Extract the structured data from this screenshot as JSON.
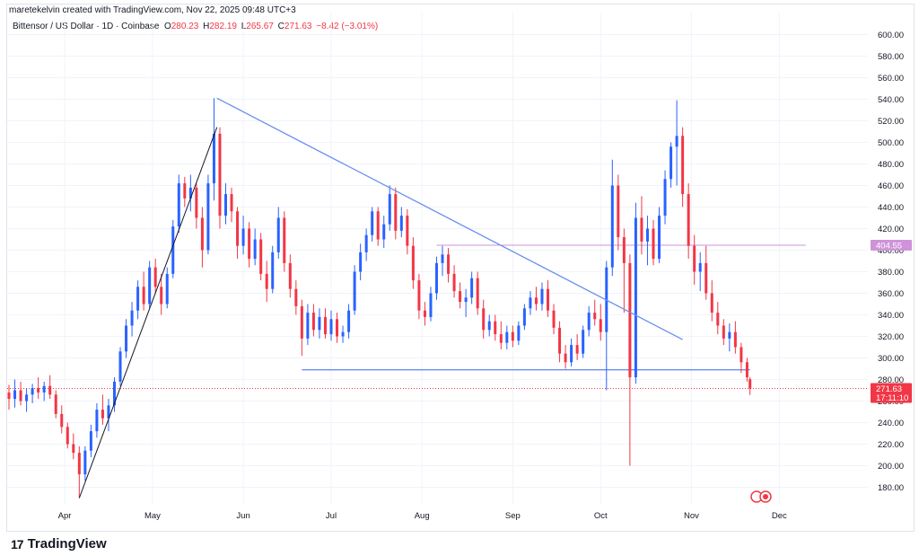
{
  "header": {
    "credit": "maretekelvin created with TradingView.com, Nov 22, 2025 09:48 UTC+3",
    "symbol": "Bittensor / US Dollar · 1D · Coinbase",
    "open_label": "O",
    "open": "280.23",
    "high_label": "H",
    "high": "282.19",
    "low_label": "L",
    "low": "265.67",
    "close_label": "C",
    "close": "271.63",
    "change": "−8.42 (−3.01%)"
  },
  "brand": {
    "name": "TradingView",
    "logo_text": "17"
  },
  "colors": {
    "up": "#2962ff",
    "down": "#f23645",
    "trendline": "#6b8ff0",
    "resistance": "#ce93d8",
    "last_price": "#f23645"
  },
  "chart_data": {
    "type": "candlestick",
    "title": "Bittensor / US Dollar · 1D · Coinbase",
    "y_ticks": [
      "180.00",
      "200.00",
      "220.00",
      "240.00",
      "260.00",
      "280.00",
      "300.00",
      "320.00",
      "340.00",
      "360.00",
      "380.00",
      "400.00",
      "420.00",
      "440.00",
      "460.00",
      "480.00",
      "500.00",
      "520.00",
      "540.00",
      "560.00",
      "580.00",
      "600.00"
    ],
    "ylim": [
      166,
      610
    ],
    "x_ticks": [
      "Apr",
      "May",
      "Jun",
      "Jul",
      "Aug",
      "Sep",
      "Oct",
      "Nov",
      "Dec"
    ],
    "x_range": [
      "2025-03-13",
      "2025-12-10"
    ],
    "grid": true,
    "price_labels": [
      {
        "name": "resistance",
        "value": "404.55",
        "color": "#ce93d8"
      },
      {
        "name": "last",
        "value": "271.63",
        "countdown": "17:11:10",
        "color": "#f23645"
      }
    ],
    "levels": [
      {
        "name": "resistance",
        "price": 404.55,
        "from": "2025-08-06",
        "to": "2025-12-10"
      },
      {
        "name": "support",
        "price": 289,
        "from": "2025-06-21",
        "to": "2025-11-21"
      }
    ],
    "trendlines": [
      {
        "name": "descending",
        "from": {
          "date": "2025-05-23",
          "price": 541
        },
        "to": {
          "date": "2025-10-29",
          "price": 317
        }
      },
      {
        "name": "ascending",
        "from": {
          "date": "2025-04-06",
          "price": 170
        },
        "to": {
          "date": "2025-05-23",
          "price": 514
        }
      }
    ],
    "candles": [
      {
        "d": "2025-03-13",
        "o": 268,
        "h": 275,
        "l": 252,
        "c": 262
      },
      {
        "d": "2025-03-15",
        "o": 262,
        "h": 280,
        "l": 254,
        "c": 270
      },
      {
        "d": "2025-03-17",
        "o": 270,
        "h": 278,
        "l": 256,
        "c": 260
      },
      {
        "d": "2025-03-19",
        "o": 260,
        "h": 272,
        "l": 250,
        "c": 266
      },
      {
        "d": "2025-03-21",
        "o": 266,
        "h": 276,
        "l": 258,
        "c": 272
      },
      {
        "d": "2025-03-23",
        "o": 272,
        "h": 282,
        "l": 262,
        "c": 268
      },
      {
        "d": "2025-03-25",
        "o": 268,
        "h": 278,
        "l": 260,
        "c": 274
      },
      {
        "d": "2025-03-27",
        "o": 274,
        "h": 284,
        "l": 262,
        "c": 266
      },
      {
        "d": "2025-03-29",
        "o": 266,
        "h": 270,
        "l": 244,
        "c": 248
      },
      {
        "d": "2025-03-31",
        "o": 248,
        "h": 256,
        "l": 230,
        "c": 236
      },
      {
        "d": "2025-04-02",
        "o": 236,
        "h": 240,
        "l": 216,
        "c": 220
      },
      {
        "d": "2025-04-04",
        "o": 220,
        "h": 230,
        "l": 206,
        "c": 212
      },
      {
        "d": "2025-04-06",
        "o": 212,
        "h": 218,
        "l": 170,
        "c": 192
      },
      {
        "d": "2025-04-08",
        "o": 192,
        "h": 218,
        "l": 186,
        "c": 214
      },
      {
        "d": "2025-04-10",
        "o": 214,
        "h": 238,
        "l": 208,
        "c": 232
      },
      {
        "d": "2025-04-12",
        "o": 232,
        "h": 258,
        "l": 226,
        "c": 252
      },
      {
        "d": "2025-04-14",
        "o": 252,
        "h": 266,
        "l": 238,
        "c": 244
      },
      {
        "d": "2025-04-16",
        "o": 244,
        "h": 262,
        "l": 232,
        "c": 256
      },
      {
        "d": "2025-04-18",
        "o": 256,
        "h": 282,
        "l": 250,
        "c": 278
      },
      {
        "d": "2025-04-20",
        "o": 278,
        "h": 310,
        "l": 274,
        "c": 306
      },
      {
        "d": "2025-04-22",
        "o": 306,
        "h": 336,
        "l": 300,
        "c": 330
      },
      {
        "d": "2025-04-24",
        "o": 330,
        "h": 352,
        "l": 320,
        "c": 344
      },
      {
        "d": "2025-04-26",
        "o": 344,
        "h": 372,
        "l": 336,
        "c": 366
      },
      {
        "d": "2025-04-28",
        "o": 366,
        "h": 380,
        "l": 344,
        "c": 350
      },
      {
        "d": "2025-04-30",
        "o": 350,
        "h": 390,
        "l": 346,
        "c": 384
      },
      {
        "d": "2025-05-02",
        "o": 384,
        "h": 392,
        "l": 360,
        "c": 366
      },
      {
        "d": "2025-05-04",
        "o": 366,
        "h": 378,
        "l": 340,
        "c": 350
      },
      {
        "d": "2025-05-06",
        "o": 350,
        "h": 384,
        "l": 346,
        "c": 378
      },
      {
        "d": "2025-05-08",
        "o": 378,
        "h": 428,
        "l": 374,
        "c": 422
      },
      {
        "d": "2025-05-10",
        "o": 422,
        "h": 470,
        "l": 416,
        "c": 462
      },
      {
        "d": "2025-05-12",
        "o": 462,
        "h": 468,
        "l": 440,
        "c": 448
      },
      {
        "d": "2025-05-14",
        "o": 448,
        "h": 470,
        "l": 436,
        "c": 458
      },
      {
        "d": "2025-05-16",
        "o": 458,
        "h": 462,
        "l": 420,
        "c": 430
      },
      {
        "d": "2025-05-18",
        "o": 430,
        "h": 440,
        "l": 384,
        "c": 400
      },
      {
        "d": "2025-05-20",
        "o": 400,
        "h": 470,
        "l": 396,
        "c": 462
      },
      {
        "d": "2025-05-22",
        "o": 462,
        "h": 541,
        "l": 446,
        "c": 508
      },
      {
        "d": "2025-05-24",
        "o": 508,
        "h": 514,
        "l": 420,
        "c": 432
      },
      {
        "d": "2025-05-26",
        "o": 432,
        "h": 462,
        "l": 424,
        "c": 452
      },
      {
        "d": "2025-05-28",
        "o": 452,
        "h": 458,
        "l": 426,
        "c": 436
      },
      {
        "d": "2025-05-30",
        "o": 436,
        "h": 440,
        "l": 392,
        "c": 404
      },
      {
        "d": "2025-06-01",
        "o": 404,
        "h": 432,
        "l": 396,
        "c": 420
      },
      {
        "d": "2025-06-03",
        "o": 420,
        "h": 426,
        "l": 384,
        "c": 392
      },
      {
        "d": "2025-06-05",
        "o": 392,
        "h": 420,
        "l": 386,
        "c": 410
      },
      {
        "d": "2025-06-07",
        "o": 410,
        "h": 416,
        "l": 372,
        "c": 378
      },
      {
        "d": "2025-06-09",
        "o": 378,
        "h": 390,
        "l": 352,
        "c": 364
      },
      {
        "d": "2025-06-11",
        "o": 364,
        "h": 404,
        "l": 360,
        "c": 398
      },
      {
        "d": "2025-06-13",
        "o": 398,
        "h": 440,
        "l": 392,
        "c": 430
      },
      {
        "d": "2025-06-15",
        "o": 430,
        "h": 436,
        "l": 380,
        "c": 388
      },
      {
        "d": "2025-06-17",
        "o": 388,
        "h": 396,
        "l": 356,
        "c": 364
      },
      {
        "d": "2025-06-19",
        "o": 364,
        "h": 372,
        "l": 340,
        "c": 348
      },
      {
        "d": "2025-06-21",
        "o": 348,
        "h": 354,
        "l": 302,
        "c": 318
      },
      {
        "d": "2025-06-23",
        "o": 318,
        "h": 350,
        "l": 312,
        "c": 342
      },
      {
        "d": "2025-06-25",
        "o": 342,
        "h": 350,
        "l": 320,
        "c": 326
      },
      {
        "d": "2025-06-27",
        "o": 326,
        "h": 346,
        "l": 318,
        "c": 338
      },
      {
        "d": "2025-06-29",
        "o": 338,
        "h": 346,
        "l": 318,
        "c": 322
      },
      {
        "d": "2025-07-01",
        "o": 322,
        "h": 344,
        "l": 316,
        "c": 336
      },
      {
        "d": "2025-07-03",
        "o": 336,
        "h": 342,
        "l": 314,
        "c": 320
      },
      {
        "d": "2025-07-05",
        "o": 320,
        "h": 330,
        "l": 314,
        "c": 324
      },
      {
        "d": "2025-07-07",
        "o": 324,
        "h": 350,
        "l": 318,
        "c": 344
      },
      {
        "d": "2025-07-09",
        "o": 344,
        "h": 386,
        "l": 340,
        "c": 380
      },
      {
        "d": "2025-07-11",
        "o": 380,
        "h": 406,
        "l": 372,
        "c": 398
      },
      {
        "d": "2025-07-13",
        "o": 398,
        "h": 420,
        "l": 390,
        "c": 414
      },
      {
        "d": "2025-07-15",
        "o": 414,
        "h": 440,
        "l": 408,
        "c": 436
      },
      {
        "d": "2025-07-17",
        "o": 436,
        "h": 440,
        "l": 404,
        "c": 410
      },
      {
        "d": "2025-07-19",
        "o": 410,
        "h": 432,
        "l": 402,
        "c": 424
      },
      {
        "d": "2025-07-21",
        "o": 424,
        "h": 460,
        "l": 418,
        "c": 452
      },
      {
        "d": "2025-07-23",
        "o": 452,
        "h": 458,
        "l": 410,
        "c": 418
      },
      {
        "d": "2025-07-25",
        "o": 418,
        "h": 440,
        "l": 412,
        "c": 432
      },
      {
        "d": "2025-07-27",
        "o": 432,
        "h": 438,
        "l": 396,
        "c": 404
      },
      {
        "d": "2025-07-29",
        "o": 404,
        "h": 412,
        "l": 364,
        "c": 372
      },
      {
        "d": "2025-07-31",
        "o": 372,
        "h": 378,
        "l": 336,
        "c": 344
      },
      {
        "d": "2025-08-02",
        "o": 344,
        "h": 352,
        "l": 330,
        "c": 338
      },
      {
        "d": "2025-08-04",
        "o": 338,
        "h": 366,
        "l": 334,
        "c": 360
      },
      {
        "d": "2025-08-06",
        "o": 360,
        "h": 394,
        "l": 354,
        "c": 388
      },
      {
        "d": "2025-08-08",
        "o": 388,
        "h": 404,
        "l": 376,
        "c": 396
      },
      {
        "d": "2025-08-10",
        "o": 396,
        "h": 402,
        "l": 370,
        "c": 378
      },
      {
        "d": "2025-08-12",
        "o": 378,
        "h": 386,
        "l": 356,
        "c": 362
      },
      {
        "d": "2025-08-14",
        "o": 362,
        "h": 370,
        "l": 346,
        "c": 352
      },
      {
        "d": "2025-08-16",
        "o": 352,
        "h": 364,
        "l": 338,
        "c": 356
      },
      {
        "d": "2025-08-18",
        "o": 356,
        "h": 380,
        "l": 350,
        "c": 374
      },
      {
        "d": "2025-08-20",
        "o": 374,
        "h": 380,
        "l": 340,
        "c": 346
      },
      {
        "d": "2025-08-22",
        "o": 346,
        "h": 354,
        "l": 318,
        "c": 326
      },
      {
        "d": "2025-08-24",
        "o": 326,
        "h": 340,
        "l": 320,
        "c": 334
      },
      {
        "d": "2025-08-26",
        "o": 334,
        "h": 340,
        "l": 316,
        "c": 322
      },
      {
        "d": "2025-08-28",
        "o": 322,
        "h": 334,
        "l": 308,
        "c": 314
      },
      {
        "d": "2025-08-30",
        "o": 314,
        "h": 330,
        "l": 308,
        "c": 324
      },
      {
        "d": "2025-09-01",
        "o": 324,
        "h": 330,
        "l": 310,
        "c": 316
      },
      {
        "d": "2025-09-03",
        "o": 316,
        "h": 334,
        "l": 312,
        "c": 330
      },
      {
        "d": "2025-09-05",
        "o": 330,
        "h": 350,
        "l": 326,
        "c": 346
      },
      {
        "d": "2025-09-07",
        "o": 346,
        "h": 362,
        "l": 340,
        "c": 356
      },
      {
        "d": "2025-09-09",
        "o": 356,
        "h": 366,
        "l": 344,
        "c": 350
      },
      {
        "d": "2025-09-11",
        "o": 350,
        "h": 370,
        "l": 344,
        "c": 364
      },
      {
        "d": "2025-09-13",
        "o": 364,
        "h": 372,
        "l": 338,
        "c": 344
      },
      {
        "d": "2025-09-15",
        "o": 344,
        "h": 350,
        "l": 322,
        "c": 328
      },
      {
        "d": "2025-09-17",
        "o": 328,
        "h": 334,
        "l": 296,
        "c": 304
      },
      {
        "d": "2025-09-19",
        "o": 304,
        "h": 312,
        "l": 290,
        "c": 296
      },
      {
        "d": "2025-09-21",
        "o": 296,
        "h": 318,
        "l": 292,
        "c": 312
      },
      {
        "d": "2025-09-23",
        "o": 312,
        "h": 322,
        "l": 298,
        "c": 304
      },
      {
        "d": "2025-09-25",
        "o": 304,
        "h": 330,
        "l": 300,
        "c": 326
      },
      {
        "d": "2025-09-27",
        "o": 326,
        "h": 348,
        "l": 320,
        "c": 342
      },
      {
        "d": "2025-09-29",
        "o": 342,
        "h": 354,
        "l": 330,
        "c": 336
      },
      {
        "d": "2025-10-01",
        "o": 336,
        "h": 350,
        "l": 316,
        "c": 324
      },
      {
        "d": "2025-10-03",
        "o": 324,
        "h": 390,
        "l": 270,
        "c": 384
      },
      {
        "d": "2025-10-05",
        "o": 384,
        "h": 484,
        "l": 376,
        "c": 460
      },
      {
        "d": "2025-10-07",
        "o": 460,
        "h": 470,
        "l": 400,
        "c": 412
      },
      {
        "d": "2025-10-09",
        "o": 412,
        "h": 420,
        "l": 342,
        "c": 388
      },
      {
        "d": "2025-10-11",
        "o": 388,
        "h": 396,
        "l": 200,
        "c": 282
      },
      {
        "d": "2025-10-13",
        "o": 282,
        "h": 444,
        "l": 276,
        "c": 430
      },
      {
        "d": "2025-10-15",
        "o": 430,
        "h": 450,
        "l": 396,
        "c": 408
      },
      {
        "d": "2025-10-17",
        "o": 408,
        "h": 432,
        "l": 386,
        "c": 420
      },
      {
        "d": "2025-10-19",
        "o": 420,
        "h": 428,
        "l": 386,
        "c": 392
      },
      {
        "d": "2025-10-21",
        "o": 392,
        "h": 440,
        "l": 388,
        "c": 432
      },
      {
        "d": "2025-10-23",
        "o": 432,
        "h": 474,
        "l": 424,
        "c": 466
      },
      {
        "d": "2025-10-25",
        "o": 466,
        "h": 500,
        "l": 458,
        "c": 496
      },
      {
        "d": "2025-10-27",
        "o": 496,
        "h": 539,
        "l": 460,
        "c": 506
      },
      {
        "d": "2025-10-29",
        "o": 506,
        "h": 514,
        "l": 440,
        "c": 452
      },
      {
        "d": "2025-10-31",
        "o": 452,
        "h": 462,
        "l": 392,
        "c": 404
      },
      {
        "d": "2025-11-02",
        "o": 404,
        "h": 414,
        "l": 368,
        "c": 380
      },
      {
        "d": "2025-11-04",
        "o": 380,
        "h": 398,
        "l": 362,
        "c": 388
      },
      {
        "d": "2025-11-06",
        "o": 388,
        "h": 404,
        "l": 354,
        "c": 360
      },
      {
        "d": "2025-11-08",
        "o": 360,
        "h": 372,
        "l": 334,
        "c": 342
      },
      {
        "d": "2025-11-10",
        "o": 342,
        "h": 352,
        "l": 322,
        "c": 330
      },
      {
        "d": "2025-11-12",
        "o": 330,
        "h": 336,
        "l": 312,
        "c": 318
      },
      {
        "d": "2025-11-14",
        "o": 318,
        "h": 332,
        "l": 306,
        "c": 324
      },
      {
        "d": "2025-11-16",
        "o": 324,
        "h": 334,
        "l": 304,
        "c": 310
      },
      {
        "d": "2025-11-18",
        "o": 310,
        "h": 314,
        "l": 286,
        "c": 296
      },
      {
        "d": "2025-11-20",
        "o": 296,
        "h": 300,
        "l": 278,
        "c": 282
      },
      {
        "d": "2025-11-21",
        "o": 280.23,
        "h": 282.19,
        "l": 265.67,
        "c": 271.63
      }
    ]
  }
}
